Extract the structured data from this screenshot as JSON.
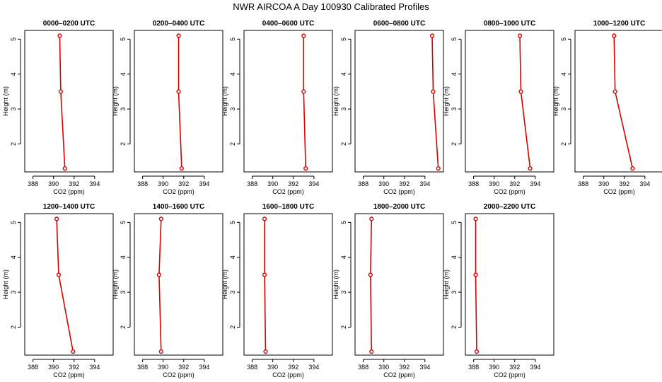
{
  "title": "NWR AIRCOA A  Day 100930  Calibrated Profiles",
  "chart_data": [
    {
      "type": "line",
      "title": "0000–0200 UTC",
      "xlabel": "CO2 (ppm)",
      "ylabel": "Height (m)",
      "xlim": [
        387.2,
        395.8
      ],
      "ylim": [
        1.2,
        5.25
      ],
      "xticks": [
        388,
        390,
        392,
        394
      ],
      "yticks": [
        2,
        3,
        4,
        5
      ],
      "x": [
        390.6,
        390.7,
        391.1
      ],
      "y": [
        5.1,
        3.5,
        1.3
      ]
    },
    {
      "type": "line",
      "title": "0200–0400 UTC",
      "xlabel": "CO2 (ppm)",
      "ylabel": "Height (m)",
      "xlim": [
        387.2,
        395.8
      ],
      "ylim": [
        1.2,
        5.25
      ],
      "xticks": [
        388,
        390,
        392,
        394
      ],
      "yticks": [
        2,
        3,
        4,
        5
      ],
      "x": [
        391.5,
        391.5,
        391.8
      ],
      "y": [
        5.1,
        3.5,
        1.3
      ]
    },
    {
      "type": "line",
      "title": "0400–0600 UTC",
      "xlabel": "CO2 (ppm)",
      "ylabel": "Height (m)",
      "xlim": [
        387.2,
        395.8
      ],
      "ylim": [
        1.2,
        5.25
      ],
      "xticks": [
        388,
        390,
        392,
        394
      ],
      "yticks": [
        2,
        3,
        4,
        5
      ],
      "x": [
        393.0,
        393.0,
        393.2
      ],
      "y": [
        5.1,
        3.5,
        1.3
      ]
    },
    {
      "type": "line",
      "title": "0600–0800 UTC",
      "xlabel": "CO2 (ppm)",
      "ylabel": "Height (m)",
      "xlim": [
        387.2,
        395.8
      ],
      "ylim": [
        1.2,
        5.25
      ],
      "xticks": [
        388,
        390,
        392,
        394
      ],
      "yticks": [
        2,
        3,
        4,
        5
      ],
      "x": [
        394.7,
        394.8,
        395.3
      ],
      "y": [
        5.1,
        3.5,
        1.3
      ]
    },
    {
      "type": "line",
      "title": "0800–1000 UTC",
      "xlabel": "CO2 (ppm)",
      "ylabel": "Height (m)",
      "xlim": [
        387.2,
        395.8
      ],
      "ylim": [
        1.2,
        5.25
      ],
      "xticks": [
        388,
        390,
        392,
        394
      ],
      "yticks": [
        2,
        3,
        4,
        5
      ],
      "x": [
        392.5,
        392.6,
        393.5
      ],
      "y": [
        5.1,
        3.5,
        1.3
      ]
    },
    {
      "type": "line",
      "title": "1000–1200 UTC",
      "xlabel": "CO2 (ppm)",
      "ylabel": "Height (m)",
      "xlim": [
        387.2,
        395.8
      ],
      "ylim": [
        1.2,
        5.25
      ],
      "xticks": [
        388,
        390,
        392,
        394
      ],
      "yticks": [
        2,
        3,
        4,
        5
      ],
      "x": [
        391.0,
        391.1,
        392.8
      ],
      "y": [
        5.1,
        3.5,
        1.3
      ]
    },
    {
      "type": "line",
      "title": "1200–1400 UTC",
      "xlabel": "CO2 (ppm)",
      "ylabel": "Height (m)",
      "xlim": [
        387.2,
        395.8
      ],
      "ylim": [
        1.2,
        5.25
      ],
      "xticks": [
        388,
        390,
        392,
        394
      ],
      "yticks": [
        2,
        3,
        4,
        5
      ],
      "x": [
        390.3,
        390.5,
        391.9
      ],
      "y": [
        5.1,
        3.5,
        1.3
      ]
    },
    {
      "type": "line",
      "title": "1400–1600 UTC",
      "xlabel": "CO2 (ppm)",
      "ylabel": "Height (m)",
      "xlim": [
        387.2,
        395.8
      ],
      "ylim": [
        1.2,
        5.25
      ],
      "xticks": [
        388,
        390,
        392,
        394
      ],
      "yticks": [
        2,
        3,
        4,
        5
      ],
      "x": [
        389.8,
        389.6,
        389.8
      ],
      "y": [
        5.1,
        3.5,
        1.3
      ]
    },
    {
      "type": "line",
      "title": "1600–1800 UTC",
      "xlabel": "CO2 (ppm)",
      "ylabel": "Height (m)",
      "xlim": [
        387.2,
        395.8
      ],
      "ylim": [
        1.2,
        5.25
      ],
      "xticks": [
        388,
        390,
        392,
        394
      ],
      "yticks": [
        2,
        3,
        4,
        5
      ],
      "x": [
        389.2,
        389.2,
        389.3
      ],
      "y": [
        5.1,
        3.5,
        1.3
      ]
    },
    {
      "type": "line",
      "title": "1800–2000 UTC",
      "xlabel": "CO2 (ppm)",
      "ylabel": "Height (m)",
      "xlim": [
        387.2,
        395.8
      ],
      "ylim": [
        1.2,
        5.25
      ],
      "xticks": [
        388,
        390,
        392,
        394
      ],
      "yticks": [
        2,
        3,
        4,
        5
      ],
      "x": [
        388.8,
        388.7,
        388.8
      ],
      "y": [
        5.1,
        3.5,
        1.3
      ]
    },
    {
      "type": "line",
      "title": "2000–2200 UTC",
      "xlabel": "CO2 (ppm)",
      "ylabel": "Height (m)",
      "xlim": [
        387.2,
        395.8
      ],
      "ylim": [
        1.2,
        5.25
      ],
      "xticks": [
        388,
        390,
        392,
        394
      ],
      "yticks": [
        2,
        3,
        4,
        5
      ],
      "x": [
        388.2,
        388.2,
        388.3
      ],
      "y": [
        5.1,
        3.5,
        1.3
      ]
    }
  ],
  "colors": {
    "series": "#dd0000",
    "axis": "#000000",
    "background": "#ffffff"
  }
}
